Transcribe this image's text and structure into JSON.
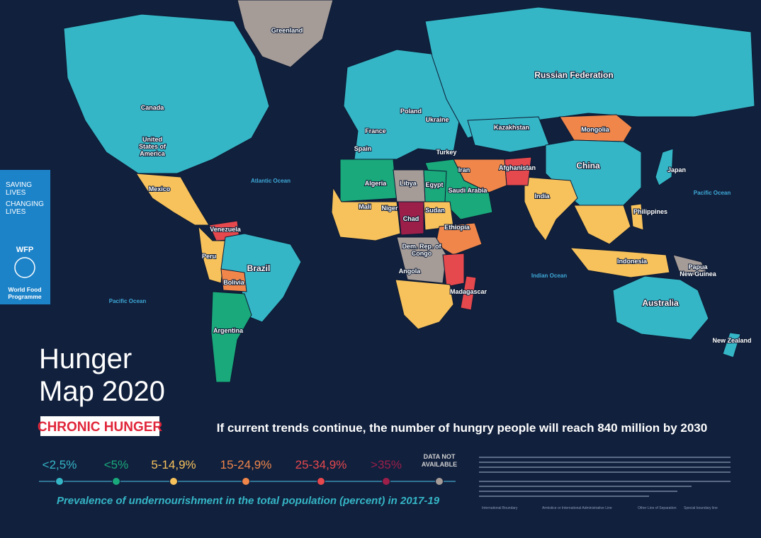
{
  "side_banner": {
    "lines": [
      "SAVING",
      "LIVES",
      "CHANGING",
      "LIVES"
    ],
    "logo": "WFP",
    "org": [
      "World Food",
      "Programme"
    ]
  },
  "title": [
    "Hunger",
    "Map 2020"
  ],
  "badge": "CHRONIC HUNGER",
  "headline": "If current trends continue, the number of hungry people will reach 840 million by 2030",
  "legend": {
    "items": [
      {
        "label": "<2,5%",
        "color": "#35b6c6"
      },
      {
        "label": "<5%",
        "color": "#19a97b"
      },
      {
        "label": "5-14,9%",
        "color": "#f7c25c"
      },
      {
        "label": "15-24,9%",
        "color": "#f0864a"
      },
      {
        "label": "25-34,9%",
        "color": "#e5484d"
      },
      {
        "label": ">35%",
        "color": "#9c1f4a"
      },
      {
        "label": "DATA NOT AVAILABLE",
        "color": "#a59c98"
      }
    ],
    "caption": "Prevalence of undernourishment in the total population (percent) in 2017-19"
  },
  "oceans": [
    "Atlantic Ocean",
    "Pacific Ocean",
    "Pacific Ocean",
    "Indian Ocean"
  ],
  "countries": [
    "Greenland",
    "Canada",
    [
      "United",
      "States of",
      "America"
    ],
    "Mexico",
    "Venezuela",
    "Peru",
    "Brazil",
    "Bolivia",
    "Argentina",
    "Russian Federation",
    "Kazakhstan",
    "Mongolia",
    "China",
    "Japan",
    "India",
    "Afghanistan",
    "Iran",
    "Saudi Arabia",
    "Turkey",
    "Ukraine",
    "Poland",
    "France",
    "Spain",
    "Algeria",
    "Libya",
    "Egypt",
    "Mali",
    "Niger",
    "Chad",
    "Sudan",
    "Ethiopia",
    [
      "Dem. Rep. of",
      "Congo"
    ],
    "Angola",
    "Madagascar",
    "Philippines",
    "Indonesia",
    [
      "Papua",
      "New Guinea"
    ],
    "Australia",
    "New Zealand"
  ],
  "boundary_legend": [
    "International Boundary",
    "Armistice or International Administrative Line",
    "Other Line of Separation",
    "Special boundary line"
  ]
}
